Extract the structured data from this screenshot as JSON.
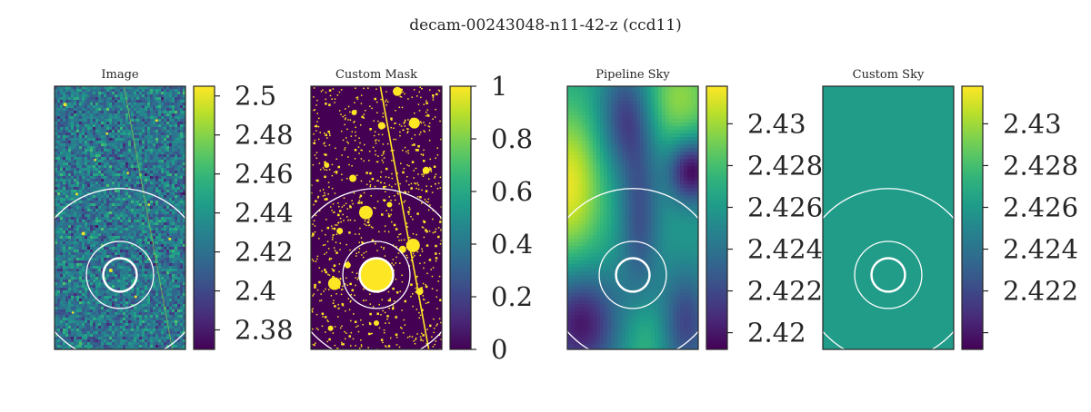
{
  "figure": {
    "suptitle": "decam-00243048-n11-42-z (ccd11)"
  },
  "colors": {
    "viridis": [
      "#440154",
      "#482878",
      "#3e4989",
      "#31688e",
      "#26828e",
      "#1f9e89",
      "#35b779",
      "#6ece58",
      "#b5de2b",
      "#fde725"
    ],
    "circle": "#ffffff",
    "axes": "#262626"
  },
  "chart_data": [
    {
      "type": "heatmap",
      "title": "Image",
      "content": "noise-image",
      "colorbar": {
        "vmin": 2.37,
        "vmax": 2.505,
        "ticks": [
          2.38,
          2.4,
          2.42,
          2.44,
          2.46,
          2.48,
          2.5
        ],
        "tick_labels": [
          "2.38",
          "2.4",
          "2.42",
          "2.44",
          "2.46",
          "2.48",
          "2.5"
        ]
      },
      "circles": [
        {
          "r_frac": 0.13,
          "width": 2.5
        },
        {
          "r_frac": 0.26,
          "width": 1.3
        },
        {
          "r_frac": 0.67,
          "width": 1.3
        }
      ]
    },
    {
      "type": "heatmap",
      "title": "Custom Mask",
      "content": "mask",
      "colorbar": {
        "vmin": 0,
        "vmax": 1,
        "ticks": [
          0,
          0.2,
          0.4,
          0.6,
          0.8,
          1
        ],
        "tick_labels": [
          "0",
          "0.2",
          "0.4",
          "0.6",
          "0.8",
          "1"
        ]
      },
      "circles": [
        {
          "r_frac": 0.13,
          "width": 2.5
        },
        {
          "r_frac": 0.26,
          "width": 1.3
        },
        {
          "r_frac": 0.67,
          "width": 1.3
        }
      ]
    },
    {
      "type": "heatmap",
      "title": "Pipeline Sky",
      "content": "smooth-sky",
      "colorbar": {
        "vmin": 2.4192,
        "vmax": 2.4318,
        "ticks": [
          2.42,
          2.422,
          2.424,
          2.426,
          2.428,
          2.43
        ],
        "tick_labels": [
          "2.42",
          "2.422",
          "2.424",
          "2.426",
          "2.428",
          "2.43"
        ]
      },
      "circles": [
        {
          "r_frac": 0.13,
          "width": 2.5
        },
        {
          "r_frac": 0.26,
          "width": 1.3
        },
        {
          "r_frac": 0.67,
          "width": 1.3
        }
      ]
    },
    {
      "type": "heatmap",
      "title": "Custom Sky",
      "content": "constant",
      "constant_value": 2.4261,
      "colorbar": {
        "vmin": 2.4192,
        "vmax": 2.4318,
        "ticks": [
          2.42,
          2.422,
          2.424,
          2.426,
          2.428,
          2.43
        ],
        "tick_labels": [
          "",
          "2.422",
          "2.424",
          "2.426",
          "2.428",
          "2.43"
        ]
      },
      "circles": [
        {
          "r_frac": 0.13,
          "width": 2.5
        },
        {
          "r_frac": 0.26,
          "width": 1.3
        },
        {
          "r_frac": 0.67,
          "width": 1.3
        }
      ]
    }
  ]
}
